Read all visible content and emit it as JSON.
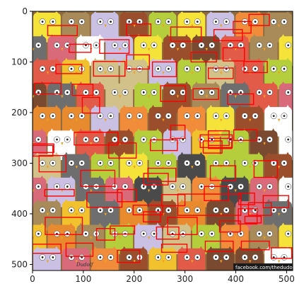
{
  "chart_data": {
    "type": "heatmap",
    "title": "",
    "xlabel": "",
    "ylabel": "",
    "xlim": [
      0,
      512
    ],
    "ylim": [
      512,
      0
    ],
    "x_ticks": [
      0,
      100,
      200,
      300,
      400,
      500
    ],
    "y_ticks": [
      0,
      100,
      200,
      300,
      400,
      500
    ],
    "y_inverted": true,
    "grid": false,
    "legend": "none",
    "image_content": "illustration of many cartoon owls; one cat hidden among them",
    "image_text": {
      "credit": "facebook.com/thedudolf",
      "signature": "Dudolf"
    },
    "box_color": "#ff0000",
    "boxes": [
      [
        426,
        6,
        466,
        28
      ],
      [
        395,
        20,
        430,
        43
      ],
      [
        30,
        28,
        88,
        48
      ],
      [
        185,
        25,
        233,
        48
      ],
      [
        272,
        31,
        332,
        59
      ],
      [
        357,
        36,
        413,
        58
      ],
      [
        72,
        65,
        115,
        81
      ],
      [
        132,
        56,
        190,
        83
      ],
      [
        312,
        81,
        362,
        100
      ],
      [
        375,
        72,
        417,
        98
      ],
      [
        185,
        86,
        230,
        114
      ],
      [
        46,
        105,
        97,
        123
      ],
      [
        120,
        99,
        182,
        128
      ],
      [
        236,
        100,
        283,
        129
      ],
      [
        346,
        112,
        395,
        133
      ],
      [
        416,
        99,
        462,
        121
      ],
      [
        4,
        142,
        56,
        163
      ],
      [
        78,
        144,
        119,
        166
      ],
      [
        252,
        147,
        301,
        178
      ],
      [
        316,
        153,
        366,
        174
      ],
      [
        384,
        163,
        435,
        184
      ],
      [
        98,
        170,
        132,
        201
      ],
      [
        272,
        225,
        300,
        251
      ],
      [
        232,
        254,
        285,
        275
      ],
      [
        330,
        244,
        393,
        269
      ],
      [
        336,
        256,
        373,
        280
      ],
      [
        346,
        236,
        387,
        265
      ],
      [
        346,
        251,
        392,
        271
      ],
      [
        82,
        239,
        168,
        264
      ],
      [
        396,
        234,
        442,
        255
      ],
      [
        0,
        262,
        42,
        279
      ],
      [
        0,
        265,
        40,
        286
      ],
      [
        13,
        285,
        66,
        317
      ],
      [
        150,
        260,
        204,
        290
      ],
      [
        95,
        314,
        162,
        346
      ],
      [
        227,
        310,
        282,
        336
      ],
      [
        350,
        305,
        400,
        334
      ],
      [
        436,
        295,
        482,
        328
      ],
      [
        254,
        362,
        300,
        384
      ],
      [
        338,
        346,
        386,
        374
      ],
      [
        406,
        359,
        437,
        382
      ],
      [
        24,
        352,
        82,
        365
      ],
      [
        107,
        358,
        176,
        387
      ],
      [
        219,
        320,
        267,
        343
      ],
      [
        167,
        352,
        205,
        376
      ],
      [
        454,
        364,
        504,
        388
      ],
      [
        198,
        383,
        256,
        402
      ],
      [
        286,
        361,
        410,
        403
      ],
      [
        218,
        396,
        252,
        416
      ],
      [
        418,
        405,
        450,
        418
      ],
      [
        405,
        390,
        442,
        420
      ],
      [
        425,
        378,
        470,
        403
      ],
      [
        25,
        407,
        98,
        441
      ],
      [
        153,
        424,
        201,
        440
      ],
      [
        266,
        407,
        324,
        441
      ],
      [
        368,
        414,
        409,
        436
      ],
      [
        244,
        426,
        288,
        450
      ],
      [
        126,
        429,
        162,
        452
      ],
      [
        0,
        460,
        56,
        478
      ],
      [
        66,
        458,
        119,
        484
      ],
      [
        254,
        460,
        304,
        476
      ],
      [
        340,
        454,
        395,
        474
      ],
      [
        411,
        454,
        466,
        471
      ],
      [
        470,
        467,
        510,
        488
      ],
      [
        167,
        472,
        211,
        496
      ]
    ]
  }
}
